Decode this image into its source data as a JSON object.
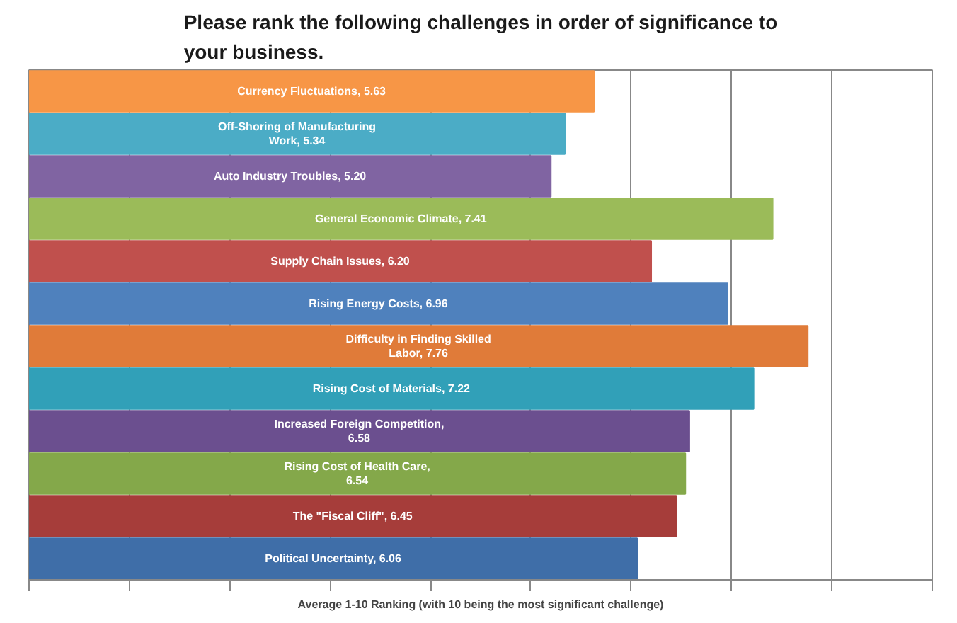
{
  "chart_data": {
    "type": "bar",
    "orientation": "horizontal",
    "title": "Please rank the following challenges in order of significance to your business.",
    "xlabel": "Average 1-10 Ranking (with 10 being the most significant challenge)",
    "categories": [
      null,
      null,
      null,
      null,
      null,
      null,
      null,
      null,
      null,
      null,
      null,
      null
    ],
    "values": [
      5.63,
      5.34,
      5.2,
      7.41,
      6.2,
      6.96,
      7.76,
      7.22,
      6.58,
      6.54,
      6.45,
      6.06
    ],
    "value_labels": [
      "Currency Fluctuations, 5.63",
      "Off-Shoring of Manufacturing Work, 5.34",
      "Auto Industry Troubles, 5.20",
      "General Economic Climate, 7.41",
      "Supply Chain Issues, 6.20",
      "Rising Energy Costs, 6.96",
      "Difficulty in Finding Skilled Labor, 7.76",
      "Rising Cost of Materials, 7.22",
      "Increased Foreign Competition, 6.58",
      "Rising Cost of Health Care, 6.54",
      "The \"Fiscal Cliff\", 6.45",
      "Political Uncertainty, 6.06"
    ],
    "colors": [
      "#f79646",
      "#4bacc6",
      "#8064a2",
      "#9bbb59",
      "#c0504d",
      "#4f81bd",
      "#e07b39",
      "#31a0b8",
      "#6b4f8f",
      "#84a84a",
      "#a63d3a",
      "#3f6ea8"
    ],
    "xlim": [
      0,
      9
    ],
    "xticks": [
      {
        "value": 0,
        "label": null
      },
      {
        "value": 1,
        "label": null
      },
      {
        "value": 2,
        "label": null
      },
      {
        "value": 3,
        "label": null
      },
      {
        "value": 4,
        "label": null
      },
      {
        "value": 5,
        "label": null
      },
      {
        "value": 6,
        "label": null
      },
      {
        "value": 7,
        "label": null
      },
      {
        "value": 8,
        "label": null
      },
      {
        "value": 9,
        "label": null
      }
    ],
    "grid": "x"
  }
}
